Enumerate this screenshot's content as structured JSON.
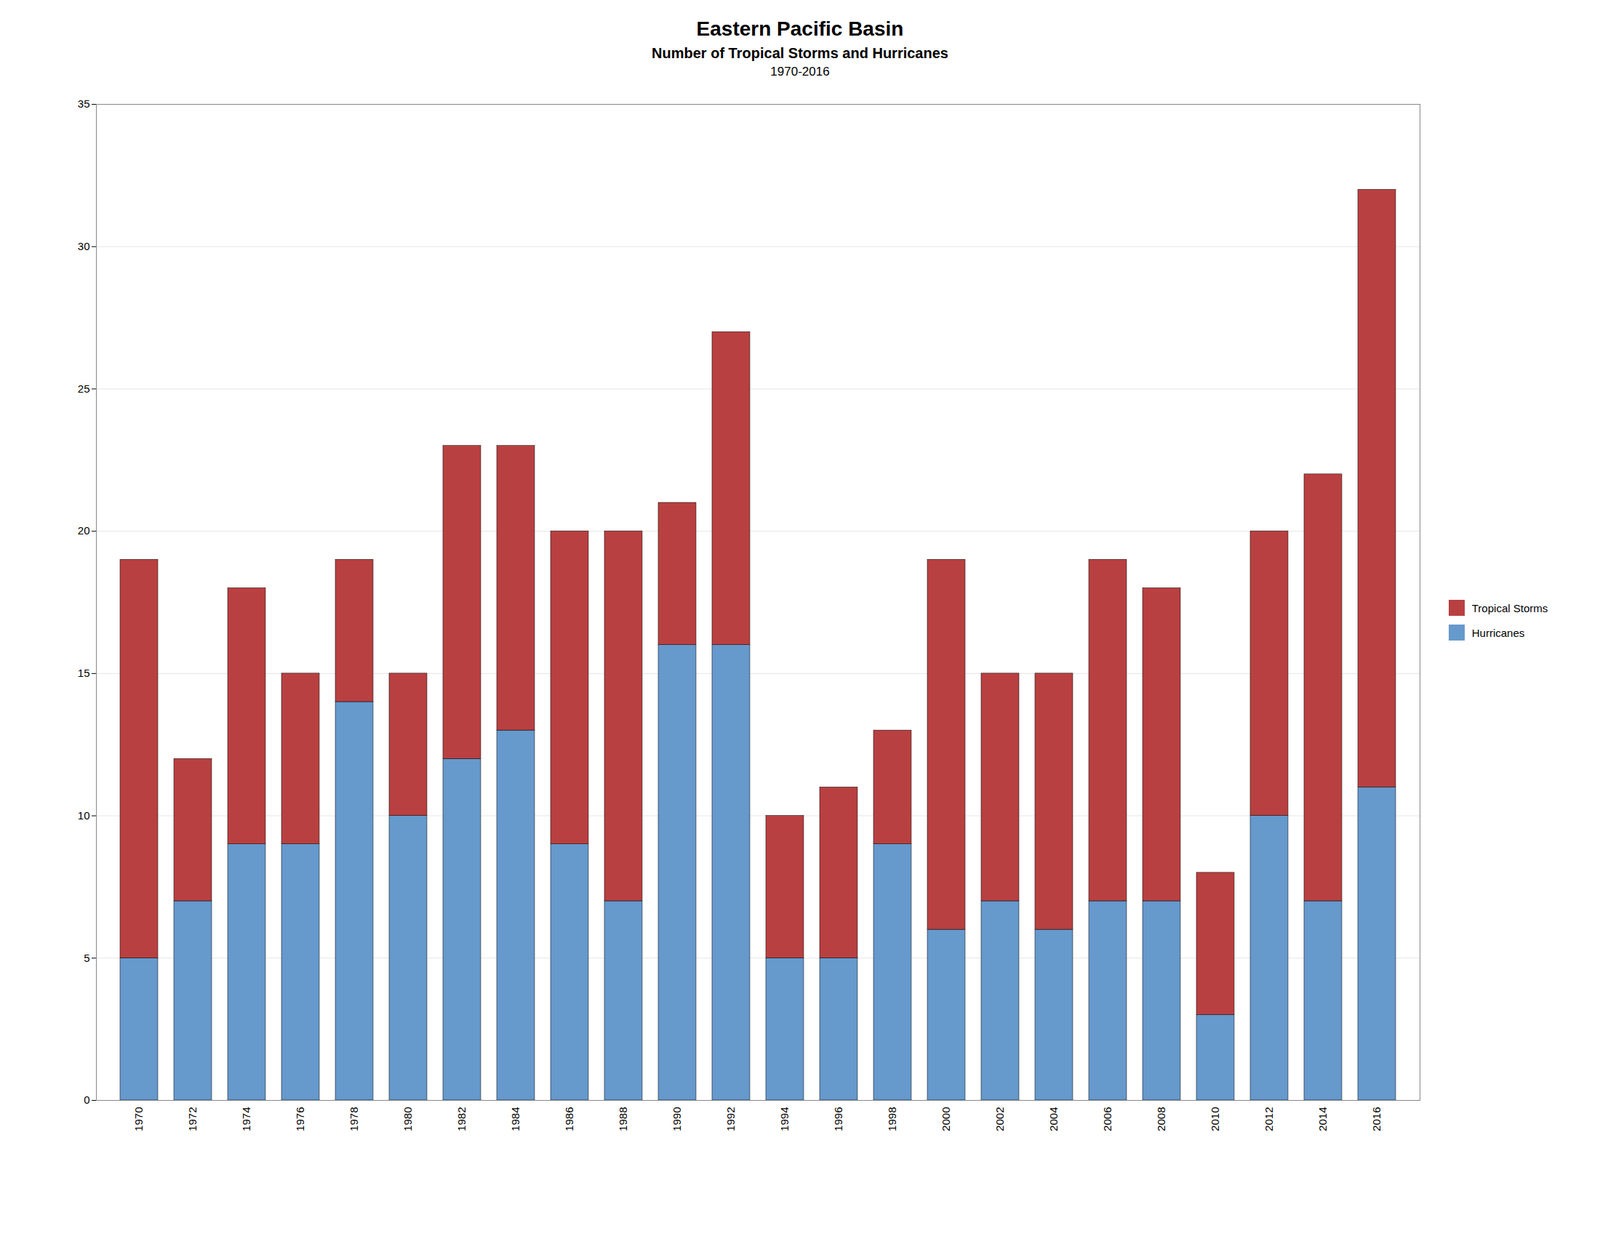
{
  "chart_data": {
    "type": "bar",
    "title": "Eastern Pacific Basin",
    "subtitle": [
      "Number of Tropical Storms and Hurricanes",
      "1970-2016"
    ],
    "categories": [
      "1970",
      "1972",
      "1974",
      "1976",
      "1978",
      "1980",
      "1982",
      "1984",
      "1986",
      "1988",
      "1990",
      "1992",
      "1994",
      "1996",
      "1998",
      "2000",
      "2002",
      "2004",
      "2006",
      "2008",
      "2010",
      "2012",
      "2014",
      "2016"
    ],
    "series": [
      {
        "name": "Hurricanes",
        "color": "#6699cc",
        "values": [
          5,
          7,
          9,
          9,
          14,
          10,
          12,
          13,
          9,
          7,
          16,
          16,
          5,
          5,
          9,
          6,
          7,
          6,
          7,
          7,
          3,
          10,
          7,
          11
        ]
      },
      {
        "name": "Tropical Storms",
        "color": "#b94040",
        "values": [
          14,
          5,
          9,
          6,
          5,
          5,
          11,
          10,
          11,
          13,
          5,
          11,
          5,
          6,
          4,
          13,
          8,
          9,
          12,
          11,
          5,
          10,
          15,
          21
        ]
      }
    ],
    "stacked": true,
    "ylim": [
      0,
      35
    ],
    "yticks": [
      0,
      5,
      10,
      15,
      20,
      25,
      30,
      35
    ],
    "grid": true,
    "legend": "right"
  }
}
